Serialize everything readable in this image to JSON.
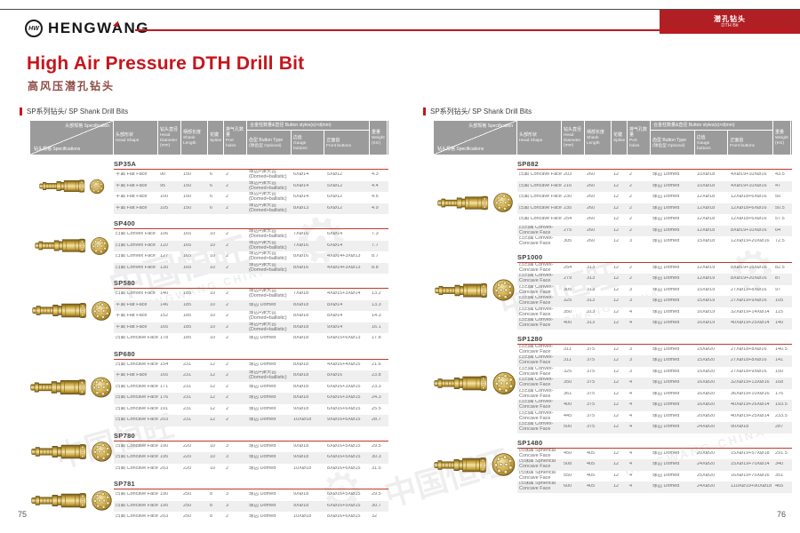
{
  "brand": {
    "logo_text": "HENGWANG",
    "logo_badge": "HW"
  },
  "corner_tab": {
    "zh": "潜孔钻头",
    "en": "DTH Bit"
  },
  "title": {
    "en": "High Air Pressure DTH Drill Bit",
    "zh": "高风压潜孔钻头"
  },
  "section_label": "SP系列钻头/ SP Shank Drill Bits",
  "colors": {
    "accent": "#c5161d",
    "header_gray": "#9b9b9b",
    "row_alt": "#efefef",
    "bit_gold": "#c9a43f"
  },
  "watermark": {
    "zh": "中国恒旺",
    "en": "HENGWANG CHINA",
    "gear": "HW"
  },
  "table_header": {
    "diag_top": "头部规格 Specification",
    "diag_bottom": "钻头规格 Specifications",
    "cols": [
      {
        "zh": "头部形状",
        "en": "Head Shape"
      },
      {
        "zh": "钻头直径",
        "en": "Head Diameter (mm)"
      },
      {
        "zh": "柄部长度",
        "en": "Shank Length"
      },
      {
        "zh": "花键",
        "en": "Spline"
      },
      {
        "zh": "排气孔数量",
        "en": "Port holes"
      }
    ],
    "button_group": {
      "zh": "合金柱数量&直径",
      "en": "Button styles(s)×d(mm)"
    },
    "button_cols": [
      {
        "zh": "齿型 Button Type",
        "en": "(球齿型 Optional)"
      },
      {
        "zh": "边齿",
        "en": "Gauge buttons"
      },
      {
        "zh": "正面齿",
        "en": "Front buttons"
      }
    ],
    "weight": {
      "zh": "重量",
      "en": "Weight (KG)"
    }
  },
  "pages": [
    {
      "page_number": "75",
      "blocks": [
        {
          "model": "SP35A",
          "rows": [
            [
              "平面 Flat Face",
              "90",
              "150",
              "6",
              "2",
              "球齿+弹头齿 (Domed+ballistic)",
              "6XØ14",
              "5XØ12",
              "4.3"
            ],
            [
              "平面 Flat Face",
              "95",
              "150",
              "6",
              "2",
              "球齿+弹头齿 (Domed+ballistic)",
              "6XØ14",
              "5XØ12",
              "4.4"
            ],
            [
              "平面 Flat Face",
              "100",
              "150",
              "6",
              "2",
              "球齿+弹头齿 (Domed+ballistic)",
              "6XØ14",
              "6XØ12",
              "4.6"
            ],
            [
              "平面 Flat Face",
              "105",
              "150",
              "6",
              "2",
              "球齿+弹头齿 (Domed+ballistic)",
              "8XØ13",
              "6XØ12",
              "4.9"
            ]
          ]
        },
        {
          "model": "SP400",
          "rows": [
            [
              "凸面 Convex Face",
              "106",
              "165",
              "10",
              "2",
              "球齿+弹头齿 (Domed+ballistic)",
              "7XØ16",
              "6XØ14",
              "7.3"
            ],
            [
              "凸面 Convex Face",
              "110",
              "165",
              "10",
              "2",
              "球齿+弹头齿 (Domed+ballistic)",
              "7XØ16",
              "6XØ14",
              "7.7"
            ],
            [
              "凸面 Convex Face",
              "127",
              "165",
              "10",
              "2",
              "球齿+弹头齿 (Domed+ballistic)",
              "8XØ16",
              "4XØ14+3XØ13",
              "8.7"
            ],
            [
              "凸面 Convex Face",
              "130",
              "165",
              "10",
              "2",
              "球齿+弹头齿 (Domed+ballistic)",
              "8XØ16",
              "4XØ14+3XØ13",
              "8.8"
            ]
          ]
        },
        {
          "model": "SP580",
          "rows": [
            [
              "凸面 Convex Face",
              "140",
              "185",
              "10",
              "2",
              "球齿+弹头齿 (Domed+ballistic)",
              "7XØ18",
              "4XØ15+3XØ14",
              "13.2"
            ],
            [
              "平面 Flat Face",
              "146",
              "185",
              "10",
              "2",
              "球齿 Domed",
              "8XØ18",
              "8XØ14",
              "13.3"
            ],
            [
              "平面 Flat Face",
              "152",
              "185",
              "10",
              "2",
              "球齿+弹头齿 (Domed+ballistic)",
              "8XØ18",
              "8XØ14",
              "14.3"
            ],
            [
              "平面 Flat Face",
              "165",
              "185",
              "10",
              "2",
              "球齿+弹头齿 (Domed+ballistic)",
              "8XØ18",
              "9XØ14",
              "16.1"
            ],
            [
              "凹面 Concave Face",
              "178",
              "185",
              "10",
              "2",
              "球齿 Domed",
              "8XØ18",
              "6XØ15+6XØ13",
              "17.8"
            ]
          ]
        },
        {
          "model": "SP680",
          "rows": [
            [
              "凹面 Concave Face",
              "154",
              "231",
              "12",
              "2",
              "球齿 Domed",
              "8XØ18",
              "4XØ16+4XØ15",
              "21.6"
            ],
            [
              "平面 Flat Face",
              "165",
              "231",
              "12",
              "2",
              "球齿+弹头齿 (Domed+ballistic)",
              "8XØ18",
              "8XØ16",
              "23.8"
            ],
            [
              "凹面 Concave Face",
              "171",
              "231",
              "12",
              "2",
              "球齿 Domed",
              "8XØ18",
              "6XØ16+3XØ15",
              "23.3"
            ],
            [
              "凹面 Concave Face",
              "176",
              "231",
              "12",
              "2",
              "球齿 Domed",
              "8XØ18",
              "6XØ16+3XØ15",
              "24.3"
            ],
            [
              "凹面 Concave Face",
              "191",
              "231",
              "12",
              "2",
              "球齿 Domed",
              "9XØ18",
              "6XØ16+6XØ15",
              "25.5"
            ],
            [
              "凹面 Concave Face",
              "203",
              "231",
              "12",
              "2",
              "球齿 Domed",
              "10XØ18",
              "9XØ16+6XØ15",
              "28.7"
            ]
          ]
        },
        {
          "model": "SP780",
          "rows": [
            [
              "凹面 Concave Face",
              "190",
              "220",
              "10",
              "3",
              "球齿 Domed",
              "9XØ18",
              "6XØ16+5XØ15",
              "29.5"
            ],
            [
              "凹面 Concave Face",
              "195",
              "220",
              "10",
              "3",
              "球齿 Domed",
              "9XØ18",
              "6XØ16+5XØ15",
              "30.3"
            ],
            [
              "凹面 Concave Face",
              "203",
              "220",
              "10",
              "2",
              "球齿 Domed",
              "10XØ18",
              "8XØ16+6XØ15",
              "31.5"
            ]
          ]
        },
        {
          "model": "SP781",
          "rows": [
            [
              "凹面 Concave Face",
              "190",
              "250",
              "8",
              "3",
              "球齿 Domed",
              "9XØ18",
              "6XØ16+5XØ15",
              "29.5"
            ],
            [
              "凹面 Concave Face",
              "195",
              "250",
              "8",
              "3",
              "球齿 Domed",
              "9XØ18",
              "6XØ16+5XØ15",
              "30.7"
            ],
            [
              "凹面 Concave Face",
              "203",
              "250",
              "8",
              "2",
              "球齿 Domed",
              "10XØ18",
              "8XØ16+6XØ15",
              "32"
            ]
          ]
        }
      ]
    },
    {
      "page_number": "76",
      "blocks": [
        {
          "model": "SP882",
          "rows": [
            [
              "凹面 Concave Face",
              "203",
              "260",
              "12",
              "2",
              "球齿 Domed",
              "10XØ18",
              "4XØ19+10XØ16",
              "43.5"
            ],
            [
              "凹面 Concave Face",
              "216",
              "260",
              "12",
              "2",
              "球齿 Domed",
              "10XØ18",
              "4XØ19+10XØ16",
              "47"
            ],
            [
              "凹面 Concave Face",
              "230",
              "260",
              "12",
              "2",
              "球齿 Domed",
              "12XØ18",
              "12XØ18+6XØ16",
              "50"
            ],
            [
              "凹面 Concave Face",
              "235",
              "260",
              "12",
              "2",
              "球齿 Domed",
              "12XØ18",
              "12XØ18+6XØ16",
              "50.5"
            ],
            [
              "凹面 Concave Face",
              "254",
              "260",
              "12",
              "2",
              "球齿 Domed",
              "12XØ18",
              "12XØ18+6XØ16",
              "57.5"
            ],
            [
              "凸凹面 Convex-Concave Face",
              "275",
              "260",
              "12",
              "2",
              "球齿 Domed",
              "12XØ18",
              "8XØ19+10XØ16",
              "64"
            ],
            [
              "凸凹面 Convex-Concave Face",
              "305",
              "260",
              "12",
              "3",
              "球齿 Domed",
              "15XØ18",
              "12XØ19+20XØ16",
              "72.5"
            ]
          ]
        },
        {
          "model": "SP1000",
          "rows": [
            [
              "凸凹面 Convex-Concave Face",
              "254",
              "313",
              "12",
              "2",
              "球齿 Domed",
              "12XØ19",
              "8XØ19+15XØ16",
              "82.5"
            ],
            [
              "凸凹面 Convex-Concave Face",
              "279",
              "313",
              "12",
              "2",
              "球齿 Domed",
              "12XØ19",
              "8XØ19+20XØ16",
              "87"
            ],
            [
              "凸凹面 Convex-Concave Face",
              "305",
              "313",
              "12",
              "3",
              "球齿 Domed",
              "15XØ19",
              "27XØ19+8XØ16",
              "97"
            ],
            [
              "凸凹面 Convex-Concave Face",
              "325",
              "313",
              "12",
              "3",
              "球齿 Domed",
              "15XØ19",
              "27XØ19+9XØ16",
              "105"
            ],
            [
              "凸凹面 Convex-Concave Face",
              "350",
              "313",
              "12",
              "4",
              "球齿 Domed",
              "16XØ19",
              "32XØ19+14XØ14",
              "115"
            ],
            [
              "凸凹面 Convex-Concave Face",
              "400",
              "313",
              "12",
              "4",
              "球齿 Domed",
              "16XØ19",
              "40XØ19+25XØ14",
              "140"
            ]
          ]
        },
        {
          "model": "SP1280",
          "rows": [
            [
              "凸凹面 Convex-Concave Face",
              "311",
              "375",
              "12",
              "3",
              "球齿 Domed",
              "15XØ20",
              "27XØ18+8XØ16",
              "140.5"
            ],
            [
              "凸凹面 Convex-Concave Face",
              "311",
              "375",
              "12",
              "3",
              "球齿 Domed",
              "15XØ20",
              "27XØ18+8XØ16",
              "141"
            ],
            [
              "凸凹面 Convex-Concave Face",
              "325",
              "375",
              "12",
              "3",
              "球齿 Domed",
              "15XØ20",
              "27XØ18+9XØ16",
              "150"
            ],
            [
              "凸凹面 Convex-Concave Face",
              "350",
              "375",
              "12",
              "4",
              "球齿 Domed",
              "16XØ20",
              "32XØ19+13XØ16",
              "168"
            ],
            [
              "凸凹面 Convex-Concave Face",
              "361",
              "375",
              "12",
              "4",
              "球齿 Domed",
              "16XØ20",
              "36XØ19+10XØ16",
              "176"
            ],
            [
              "凸凹面 Convex-Concave Face",
              "400",
              "375",
              "12",
              "4",
              "球齿 Domed",
              "16XØ20",
              "40XØ19+26XØ14",
              "193.5"
            ],
            [
              "凸凹面 Convex-Concave Face",
              "445",
              "375",
              "12",
              "4",
              "球齿 Domed",
              "20XØ20",
              "40XØ19+25XØ14",
              "233.5"
            ],
            [
              "凸凹面 Convex-Concave Face",
              "500",
              "375",
              "12",
              "4",
              "球齿 Domed",
              "24XØ20",
              "90XØ18",
              "287"
            ]
          ]
        },
        {
          "model": "SP1480",
          "rows": [
            [
              "凹球面 Spherical Concave Face",
              "450",
              "405",
              "12",
              "4",
              "球齿 Domed",
              "20XØ20",
              "15XØ19+57XØ18",
              "291.5"
            ],
            [
              "凹球面 Spherical Concave Face",
              "508",
              "405",
              "12",
              "4",
              "球齿 Domed",
              "24XØ20",
              "15XØ19+70XØ14",
              "340"
            ],
            [
              "凹球面 Spherical Concave Face",
              "550",
              "405",
              "12",
              "4",
              "球齿 Domed",
              "25XØ20",
              "16XØ19+75XØ16",
              "351"
            ],
            [
              "凹球面 Spherical Concave Face",
              "600",
              "405",
              "12",
              "4",
              "球齿 Domed",
              "24XØ20",
              "110XØ19+90XØ18",
              "465"
            ]
          ]
        }
      ]
    }
  ]
}
